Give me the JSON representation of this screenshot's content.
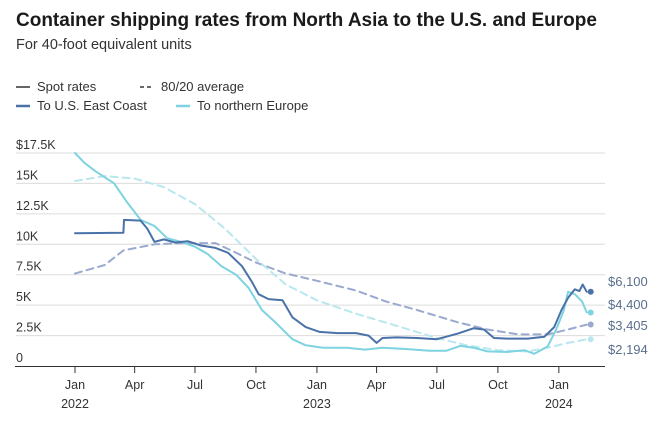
{
  "chart_data": {
    "type": "line",
    "title": "Container shipping rates from North Asia to the U.S. and Europe",
    "subtitle": "For 40-foot equivalent units",
    "legend": {
      "style_items": [
        {
          "label": "Spot rates",
          "dash": "solid"
        },
        {
          "label": "80/20 average",
          "dash": "dashed"
        }
      ],
      "color_items": [
        {
          "label": "To U.S. East Coast",
          "color": "#4a72a8"
        },
        {
          "label": "To northern Europe",
          "color": "#7ed3e0"
        }
      ]
    },
    "y_ticks": [
      {
        "value": 17500,
        "label": "$17.5K"
      },
      {
        "value": 15000,
        "label": "15K"
      },
      {
        "value": 12500,
        "label": "12.5K"
      },
      {
        "value": 10000,
        "label": "10K"
      },
      {
        "value": 7500,
        "label": "7.5K"
      },
      {
        "value": 5000,
        "label": "5K"
      },
      {
        "value": 2500,
        "label": "2.5K"
      },
      {
        "value": 0,
        "label": "0"
      }
    ],
    "ylim": [
      0,
      17500
    ],
    "x_ticks": [
      {
        "date": "2022-01-01",
        "label": "Jan",
        "year": "2022"
      },
      {
        "date": "2022-04-01",
        "label": "Apr",
        "year": ""
      },
      {
        "date": "2022-07-01",
        "label": "Jul",
        "year": ""
      },
      {
        "date": "2022-10-01",
        "label": "Oct",
        "year": ""
      },
      {
        "date": "2023-01-01",
        "label": "Jan",
        "year": "2023"
      },
      {
        "date": "2023-04-01",
        "label": "Apr",
        "year": ""
      },
      {
        "date": "2023-07-01",
        "label": "Jul",
        "year": ""
      },
      {
        "date": "2023-10-01",
        "label": "Oct",
        "year": ""
      },
      {
        "date": "2024-01-01",
        "label": "Jan",
        "year": "2024"
      }
    ],
    "xlim": [
      "2022-01-01",
      "2024-02-20"
    ],
    "series": [
      {
        "name": "To U.S. East Coast",
        "kind": "Spot rates",
        "color": "#4a72a8",
        "dash": "solid",
        "end_label": "$6,100",
        "points": [
          [
            "2022-01-01",
            10900
          ],
          [
            "2022-03-15",
            10950
          ],
          [
            "2022-03-16",
            12000
          ],
          [
            "2022-04-10",
            11950
          ],
          [
            "2022-04-20",
            11300
          ],
          [
            "2022-05-01",
            10200
          ],
          [
            "2022-05-15",
            10400
          ],
          [
            "2022-06-01",
            10150
          ],
          [
            "2022-06-20",
            10250
          ],
          [
            "2022-07-10",
            9900
          ],
          [
            "2022-08-01",
            9700
          ],
          [
            "2022-08-20",
            9300
          ],
          [
            "2022-09-10",
            8200
          ],
          [
            "2022-09-25",
            6900
          ],
          [
            "2022-10-05",
            5900
          ],
          [
            "2022-10-20",
            5500
          ],
          [
            "2022-11-10",
            5400
          ],
          [
            "2022-11-25",
            4000
          ],
          [
            "2022-12-15",
            3200
          ],
          [
            "2023-01-05",
            2800
          ],
          [
            "2023-02-01",
            2700
          ],
          [
            "2023-03-01",
            2700
          ],
          [
            "2023-03-20",
            2500
          ],
          [
            "2023-04-01",
            1900
          ],
          [
            "2023-04-10",
            2300
          ],
          [
            "2023-05-01",
            2350
          ],
          [
            "2023-06-01",
            2300
          ],
          [
            "2023-07-01",
            2200
          ],
          [
            "2023-08-01",
            2650
          ],
          [
            "2023-08-25",
            3100
          ],
          [
            "2023-09-10",
            3000
          ],
          [
            "2023-09-25",
            2300
          ],
          [
            "2023-10-15",
            2250
          ],
          [
            "2023-11-15",
            2250
          ],
          [
            "2023-12-10",
            2400
          ],
          [
            "2023-12-25",
            3200
          ],
          [
            "2024-01-05",
            4600
          ],
          [
            "2024-01-15",
            5600
          ],
          [
            "2024-01-25",
            6300
          ],
          [
            "2024-02-01",
            6150
          ],
          [
            "2024-02-06",
            6700
          ],
          [
            "2024-02-12",
            6100
          ]
        ]
      },
      {
        "name": "To northern Europe",
        "kind": "Spot rates",
        "color": "#7ed3e0",
        "dash": "solid",
        "end_label": "$4,400",
        "points": [
          [
            "2022-01-01",
            17500
          ],
          [
            "2022-01-15",
            16700
          ],
          [
            "2022-02-01",
            16000
          ],
          [
            "2022-03-01",
            15000
          ],
          [
            "2022-03-20",
            13500
          ],
          [
            "2022-04-10",
            12000
          ],
          [
            "2022-05-01",
            11500
          ],
          [
            "2022-05-20",
            10500
          ],
          [
            "2022-06-10",
            10200
          ],
          [
            "2022-07-01",
            9800
          ],
          [
            "2022-07-20",
            9200
          ],
          [
            "2022-08-10",
            8200
          ],
          [
            "2022-09-01",
            7500
          ],
          [
            "2022-09-20",
            6400
          ],
          [
            "2022-10-10",
            4600
          ],
          [
            "2022-11-01",
            3500
          ],
          [
            "2022-11-25",
            2200
          ],
          [
            "2022-12-15",
            1700
          ],
          [
            "2023-01-10",
            1500
          ],
          [
            "2023-02-15",
            1500
          ],
          [
            "2023-03-15",
            1350
          ],
          [
            "2023-04-10",
            1500
          ],
          [
            "2023-05-15",
            1400
          ],
          [
            "2023-06-20",
            1250
          ],
          [
            "2023-07-15",
            1250
          ],
          [
            "2023-08-05",
            1650
          ],
          [
            "2023-08-25",
            1500
          ],
          [
            "2023-09-15",
            1200
          ],
          [
            "2023-10-15",
            1150
          ],
          [
            "2023-11-10",
            1300
          ],
          [
            "2023-11-25",
            1000
          ],
          [
            "2023-12-15",
            1600
          ],
          [
            "2023-12-28",
            3000
          ],
          [
            "2024-01-08",
            4500
          ],
          [
            "2024-01-15",
            6100
          ],
          [
            "2024-01-25",
            5900
          ],
          [
            "2024-02-05",
            5300
          ],
          [
            "2024-02-12",
            4400
          ]
        ]
      },
      {
        "name": "To U.S. East Coast",
        "kind": "80/20 average",
        "color": "#9aa9cf",
        "dash": "dashed",
        "end_label": "$3,405",
        "points": [
          [
            "2022-01-01",
            7600
          ],
          [
            "2022-02-15",
            8300
          ],
          [
            "2022-03-15",
            9500
          ],
          [
            "2022-05-01",
            10000
          ],
          [
            "2022-06-15",
            10100
          ],
          [
            "2022-08-01",
            10100
          ],
          [
            "2022-09-01",
            9300
          ],
          [
            "2022-10-01",
            8500
          ],
          [
            "2022-11-15",
            7600
          ],
          [
            "2023-01-01",
            7000
          ],
          [
            "2023-03-01",
            6200
          ],
          [
            "2023-04-15",
            5300
          ],
          [
            "2023-06-01",
            4600
          ],
          [
            "2023-08-01",
            3600
          ],
          [
            "2023-09-15",
            3000
          ],
          [
            "2023-11-01",
            2600
          ],
          [
            "2023-12-15",
            2600
          ],
          [
            "2024-01-15",
            3000
          ],
          [
            "2024-02-12",
            3405
          ]
        ]
      },
      {
        "name": "To northern Europe",
        "kind": "80/20 average",
        "color": "#b9e7ee",
        "dash": "dashed",
        "end_label": "$2,194",
        "points": [
          [
            "2022-01-01",
            15200
          ],
          [
            "2022-02-15",
            15600
          ],
          [
            "2022-04-01",
            15400
          ],
          [
            "2022-05-15",
            14700
          ],
          [
            "2022-07-01",
            13300
          ],
          [
            "2022-08-15",
            11300
          ],
          [
            "2022-10-01",
            8800
          ],
          [
            "2022-11-15",
            6700
          ],
          [
            "2023-01-01",
            5400
          ],
          [
            "2023-03-01",
            4300
          ],
          [
            "2023-05-01",
            3300
          ],
          [
            "2023-07-01",
            2300
          ],
          [
            "2023-08-15",
            1700
          ],
          [
            "2023-10-01",
            1300
          ],
          [
            "2023-11-15",
            1200
          ],
          [
            "2023-12-15",
            1500
          ],
          [
            "2024-01-15",
            1900
          ],
          [
            "2024-02-12",
            2194
          ]
        ]
      }
    ],
    "grid": true,
    "legend_placement": "top-left"
  }
}
